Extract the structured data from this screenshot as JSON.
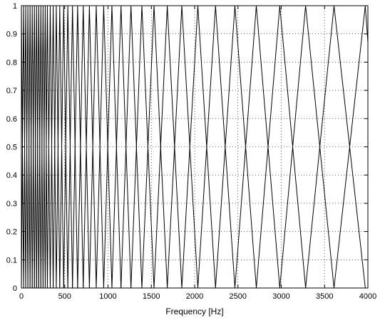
{
  "chart_data": {
    "type": "line",
    "title": "",
    "xlabel": "Frequency [Hz]",
    "ylabel": "",
    "xlim": [
      0,
      4000
    ],
    "ylim": [
      0,
      1
    ],
    "grid": true,
    "legend": "none",
    "x_ticks": [
      0,
      500,
      1000,
      1500,
      2000,
      2500,
      3000,
      3500,
      4000
    ],
    "y_ticks": [
      0,
      0.1,
      0.2,
      0.3,
      0.4,
      0.5,
      0.6,
      0.7,
      0.8,
      0.9,
      1
    ],
    "filter_centers": [
      0,
      25,
      50,
      75,
      100,
      125,
      150,
      175,
      200,
      225,
      250,
      275,
      300,
      333,
      367,
      403,
      443,
      488,
      536,
      590,
      649,
      714,
      785,
      864,
      950,
      1045,
      1150,
      1265,
      1391,
      1531,
      1684,
      1852,
      2037,
      2241,
      2465,
      2712,
      2983,
      3281,
      3609,
      3970
    ],
    "line_color": "#000000"
  }
}
